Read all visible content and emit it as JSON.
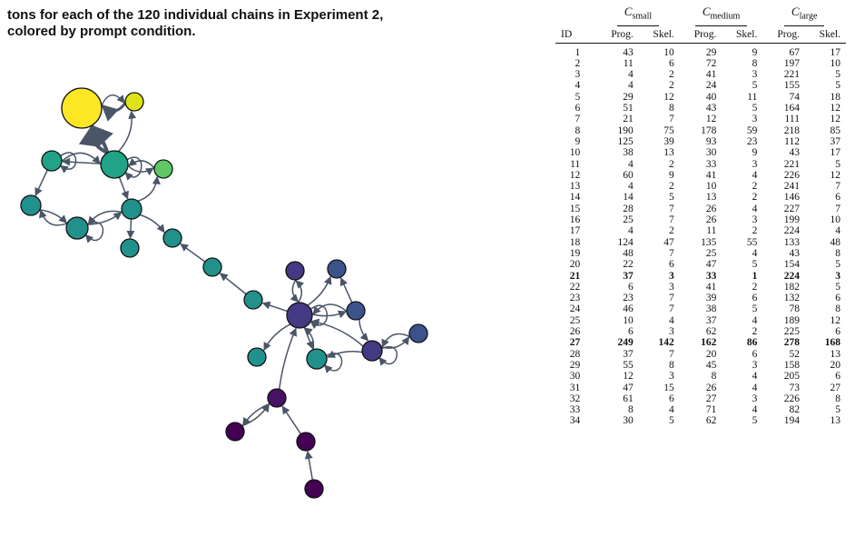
{
  "caption": {
    "line1": "tons for each of the 120 individual chains in Experiment 2,",
    "line2": "colored by prompt condition."
  },
  "table": {
    "group_headers": [
      {
        "main": "C",
        "sub": "small"
      },
      {
        "main": "C",
        "sub": "medium"
      },
      {
        "main": "C",
        "sub": "large"
      }
    ],
    "column_headers": [
      "ID",
      "Prog.",
      "Skel.",
      "Prog.",
      "Skel.",
      "Prog.",
      "Skel."
    ],
    "rows": [
      {
        "cells": [
          "1",
          "43",
          "10",
          "29",
          "9",
          "67",
          "17"
        ]
      },
      {
        "cells": [
          "2",
          "11",
          "6",
          "72",
          "8",
          "197",
          "10"
        ]
      },
      {
        "cells": [
          "3",
          "4",
          "2",
          "41",
          "3",
          "221",
          "5"
        ]
      },
      {
        "cells": [
          "4",
          "4",
          "2",
          "24",
          "5",
          "155",
          "5"
        ]
      },
      {
        "cells": [
          "5",
          "29",
          "12",
          "40",
          "11",
          "74",
          "18"
        ]
      },
      {
        "cells": [
          "6",
          "51",
          "8",
          "43",
          "5",
          "164",
          "12"
        ]
      },
      {
        "cells": [
          "7",
          "21",
          "7",
          "12",
          "3",
          "111",
          "12"
        ]
      },
      {
        "cells": [
          "8",
          "190",
          "75",
          "178",
          "59",
          "218",
          "85"
        ]
      },
      {
        "cells": [
          "9",
          "125",
          "39",
          "93",
          "23",
          "112",
          "37"
        ]
      },
      {
        "cells": [
          "10",
          "38",
          "13",
          "30",
          "9",
          "43",
          "17"
        ]
      },
      {
        "cells": [
          "11",
          "4",
          "2",
          "33",
          "3",
          "221",
          "5"
        ]
      },
      {
        "cells": [
          "12",
          "60",
          "9",
          "41",
          "4",
          "226",
          "12"
        ]
      },
      {
        "cells": [
          "13",
          "4",
          "2",
          "10",
          "2",
          "241",
          "7"
        ]
      },
      {
        "cells": [
          "14",
          "14",
          "5",
          "13",
          "2",
          "146",
          "6"
        ]
      },
      {
        "cells": [
          "15",
          "28",
          "7",
          "26",
          "4",
          "227",
          "7"
        ]
      },
      {
        "cells": [
          "16",
          "25",
          "7",
          "26",
          "3",
          "199",
          "10"
        ]
      },
      {
        "cells": [
          "17",
          "4",
          "2",
          "11",
          "2",
          "224",
          "4"
        ]
      },
      {
        "cells": [
          "18",
          "124",
          "47",
          "135",
          "55",
          "133",
          "48"
        ]
      },
      {
        "cells": [
          "19",
          "48",
          "7",
          "25",
          "4",
          "43",
          "8"
        ]
      },
      {
        "cells": [
          "20",
          "22",
          "6",
          "47",
          "5",
          "154",
          "5"
        ]
      },
      {
        "cells": [
          "21",
          "37",
          "3",
          "33",
          "1",
          "224",
          "3"
        ],
        "bold": true
      },
      {
        "cells": [
          "22",
          "6",
          "3",
          "41",
          "2",
          "182",
          "5"
        ]
      },
      {
        "cells": [
          "23",
          "23",
          "7",
          "39",
          "6",
          "132",
          "6"
        ]
      },
      {
        "cells": [
          "24",
          "46",
          "7",
          "38",
          "5",
          "78",
          "8"
        ]
      },
      {
        "cells": [
          "25",
          "10",
          "4",
          "37",
          "4",
          "189",
          "12"
        ]
      },
      {
        "cells": [
          "26",
          "6",
          "3",
          "62",
          "2",
          "225",
          "6"
        ]
      },
      {
        "cells": [
          "27",
          "249",
          "142",
          "162",
          "86",
          "278",
          "168"
        ],
        "bold": true
      },
      {
        "cells": [
          "28",
          "37",
          "7",
          "20",
          "6",
          "52",
          "13"
        ]
      },
      {
        "cells": [
          "29",
          "55",
          "8",
          "45",
          "3",
          "158",
          "20"
        ]
      },
      {
        "cells": [
          "30",
          "12",
          "3",
          "8",
          "4",
          "205",
          "6"
        ]
      },
      {
        "cells": [
          "31",
          "47",
          "15",
          "26",
          "4",
          "73",
          "27"
        ]
      },
      {
        "cells": [
          "32",
          "61",
          "6",
          "27",
          "3",
          "226",
          "8"
        ]
      },
      {
        "cells": [
          "33",
          "8",
          "4",
          "71",
          "4",
          "82",
          "5"
        ]
      },
      {
        "cells": [
          "34",
          "30",
          "5",
          "62",
          "5",
          "194",
          "13"
        ]
      }
    ]
  },
  "graph": {
    "colors": {
      "edge": "#4a5568",
      "node_stroke": "#111111",
      "yellow": "#fde725",
      "yellow_green": "#dde318",
      "green": "#5ec962",
      "teal_green": "#20a386",
      "teal": "#21918c",
      "blue_teal": "#2c728e",
      "blue": "#3b528b",
      "indigo": "#443983",
      "violet": "#471164",
      "purple": "#440154"
    }
  }
}
